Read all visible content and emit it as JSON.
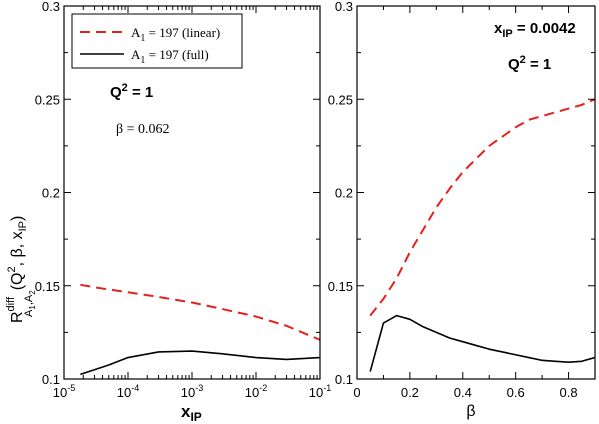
{
  "colors": {
    "linear": "#e8201a",
    "full": "#000000",
    "frame": "#000000"
  },
  "chart_data": [
    {
      "type": "line",
      "x_scale": "log",
      "xlim": [
        1e-05,
        0.1
      ],
      "ylim": [
        0.1,
        0.3
      ],
      "x_ticks": [
        1e-05,
        0.0001,
        0.001,
        0.01,
        0.1
      ],
      "x_tick_labels": [
        {
          "base": "10",
          "exp": "-5"
        },
        {
          "base": "10",
          "exp": "-4"
        },
        {
          "base": "10",
          "exp": "-3"
        },
        {
          "base": "10",
          "exp": "-2"
        },
        {
          "base": "10",
          "exp": "-1"
        }
      ],
      "y_ticks": [
        0.1,
        0.15,
        0.2,
        0.25,
        0.3
      ],
      "y_tick_labels": [
        "0.1",
        "0.15",
        "0.2",
        "0.25",
        "0.3"
      ],
      "xlabel": {
        "main": "x",
        "sub": "IP"
      },
      "ylabel": {
        "R": "R",
        "diff": "diff",
        "sub_A": "A",
        "sub_1": "1",
        "sub_comma": ",",
        "sub_A2": "A",
        "sub_2": "2",
        "paren_open": "(Q",
        "sup_2": "2",
        "mid": ", β, x",
        "sub_IP": "IP",
        "paren_close": ")"
      },
      "legend": {
        "position": "top-left",
        "entries": [
          {
            "pre": "A",
            "sub": "1",
            "post": " = 197 (linear)",
            "style": "dashed",
            "color": "#e8201a"
          },
          {
            "pre": "A",
            "sub": "1",
            "post": " = 197 (full)",
            "style": "solid",
            "color": "#000000"
          }
        ]
      },
      "annotations": [
        {
          "text": "Q",
          "sup": "2",
          "post": " = 1",
          "style": "bold"
        },
        {
          "text": "β = 0.062",
          "style": "serif"
        }
      ],
      "series": [
        {
          "name": "A1 = 197 (linear)",
          "style": "dashed",
          "color": "#e8201a",
          "x": [
            1.8e-05,
            4e-05,
            0.0001,
            0.0003,
            0.001,
            0.003,
            0.01,
            0.03,
            0.1
          ],
          "y": [
            0.1505,
            0.1485,
            0.1465,
            0.144,
            0.141,
            0.1375,
            0.1335,
            0.1285,
            0.121
          ]
        },
        {
          "name": "A1 = 197 (full)",
          "style": "solid",
          "color": "#000000",
          "x": [
            1.8e-05,
            5e-05,
            0.0001,
            0.0003,
            0.001,
            0.003,
            0.01,
            0.03,
            0.1
          ],
          "y": [
            0.1025,
            0.1075,
            0.1115,
            0.1145,
            0.115,
            0.1135,
            0.1115,
            0.1105,
            0.1115
          ]
        }
      ]
    },
    {
      "type": "line",
      "x_scale": "linear",
      "xlim": [
        0,
        0.9
      ],
      "ylim": [
        0.1,
        0.3
      ],
      "x_ticks": [
        0,
        0.2,
        0.4,
        0.6,
        0.8
      ],
      "x_tick_labels": [
        "0",
        "0.2",
        "0.4",
        "0.6",
        "0.8"
      ],
      "y_ticks": [
        0.1,
        0.15,
        0.2,
        0.25,
        0.3
      ],
      "y_tick_labels": [
        "0.1",
        "0.15",
        "0.2",
        "0.25",
        "0.3"
      ],
      "xlabel": "β",
      "annotations": [
        {
          "text": "x",
          "sub": "IP",
          "post": " = 0.0042",
          "style": "bold"
        },
        {
          "text": "Q",
          "sup": "2",
          "post": " = 1",
          "style": "bold"
        }
      ],
      "series": [
        {
          "name": "A1 = 197 (linear)",
          "style": "dashed",
          "color": "#e8201a",
          "x": [
            0.05,
            0.1,
            0.15,
            0.2,
            0.25,
            0.3,
            0.35,
            0.4,
            0.45,
            0.5,
            0.55,
            0.6,
            0.65,
            0.7,
            0.75,
            0.8,
            0.85,
            0.9
          ],
          "y": [
            0.134,
            0.143,
            0.154,
            0.168,
            0.18,
            0.192,
            0.202,
            0.211,
            0.218,
            0.225,
            0.23,
            0.235,
            0.239,
            0.241,
            0.243,
            0.245,
            0.247,
            0.25
          ]
        },
        {
          "name": "A1 = 197 (full)",
          "style": "solid",
          "color": "#000000",
          "x": [
            0.05,
            0.1,
            0.15,
            0.2,
            0.25,
            0.3,
            0.35,
            0.4,
            0.45,
            0.5,
            0.55,
            0.6,
            0.65,
            0.7,
            0.75,
            0.8,
            0.85,
            0.9
          ],
          "y": [
            0.104,
            0.13,
            0.134,
            0.132,
            0.128,
            0.125,
            0.122,
            0.12,
            0.118,
            0.116,
            0.1145,
            0.113,
            0.1115,
            0.11,
            0.1095,
            0.109,
            0.1095,
            0.1115
          ]
        }
      ]
    }
  ]
}
